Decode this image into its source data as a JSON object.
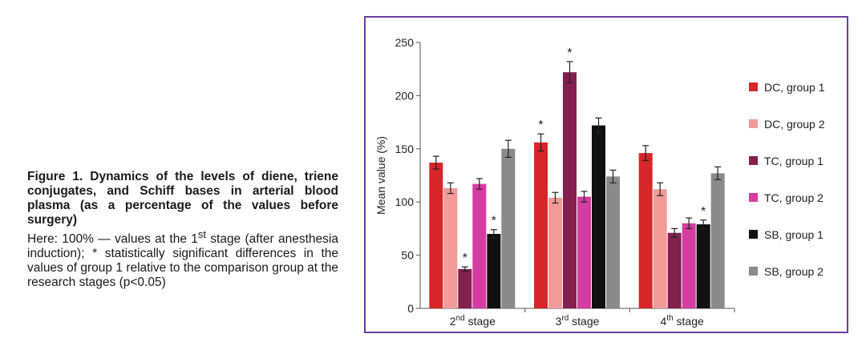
{
  "caption": {
    "title": "Figure 1. Dynamics of the levels of diene, triene conjugates, and Schiff bases in arterial blood plasma (as a percentage of the values before surgery)",
    "note_prefix": "Here: 100% — values at the 1",
    "note_sup": "st",
    "note_rest": " stage (after anesthesia induction); * statistically significant differences in the values of group 1 relative to the comparison group at the research stages (p<0.05)"
  },
  "chart_data": {
    "type": "bar",
    "title": "",
    "xlabel": "",
    "ylabel": "Mean value (%)",
    "ylim": [
      0,
      250
    ],
    "yticks": [
      "0",
      "50",
      "100",
      "150",
      "200",
      "250"
    ],
    "categories": [
      {
        "base": "2",
        "sup": "nd",
        "rest": " stage"
      },
      {
        "base": "3",
        "sup": "rd",
        "rest": " stage"
      },
      {
        "base": "4",
        "sup": "th",
        "rest": " stage"
      }
    ],
    "legend_position": "right",
    "asterisk_label": "*",
    "series": [
      {
        "name": "DC, group 1",
        "color": "#d7262a",
        "values": [
          137,
          156,
          146
        ],
        "errors": [
          6,
          8,
          7
        ],
        "significant": [
          false,
          true,
          false
        ]
      },
      {
        "name": "DC, group 2",
        "color": "#f29a98",
        "values": [
          113,
          104,
          112
        ],
        "errors": [
          5,
          5,
          6
        ],
        "significant": [
          false,
          false,
          false
        ]
      },
      {
        "name": "TC, group 1",
        "color": "#84204e",
        "values": [
          37,
          222,
          71
        ],
        "errors": [
          2,
          10,
          4
        ],
        "significant": [
          true,
          true,
          false
        ]
      },
      {
        "name": "TC, group 2",
        "color": "#d63ba1",
        "values": [
          117,
          105,
          80
        ],
        "errors": [
          5,
          5,
          5
        ],
        "significant": [
          false,
          false,
          false
        ]
      },
      {
        "name": "SB, group 1",
        "color": "#111111",
        "values": [
          70,
          172,
          79
        ],
        "errors": [
          4,
          7,
          4
        ],
        "significant": [
          true,
          false,
          true
        ]
      },
      {
        "name": "SB, group 2",
        "color": "#8a8a8a",
        "values": [
          150,
          124,
          127
        ],
        "errors": [
          8,
          6,
          6
        ],
        "significant": [
          false,
          false,
          false
        ]
      }
    ]
  }
}
